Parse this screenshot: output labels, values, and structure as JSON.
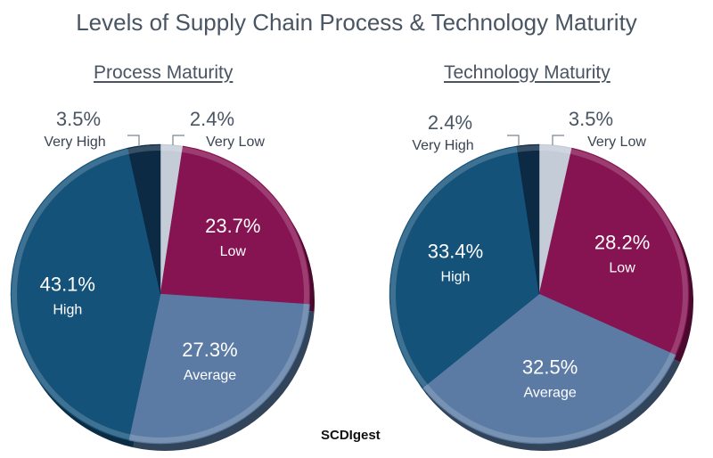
{
  "title": "Levels of Supply Chain Process & Technology Maturity",
  "source": "SCDIgest",
  "colors": {
    "very_low": "#c4ccd8",
    "low": "#861352",
    "average": "#5b7ba4",
    "high": "#14527a",
    "very_high": "#0d2a45"
  },
  "chart_data": [
    {
      "type": "pie",
      "title": "Process Maturity",
      "categories": [
        "Very Low",
        "Low",
        "Average",
        "High",
        "Very High"
      ],
      "values": [
        2.4,
        23.7,
        27.3,
        43.1,
        3.5
      ],
      "labels": [
        "2.4%",
        "23.7%",
        "27.3%",
        "43.1%",
        "3.5%"
      ]
    },
    {
      "type": "pie",
      "title": "Technology Maturity",
      "categories": [
        "Very Low",
        "Low",
        "Average",
        "High",
        "Very High"
      ],
      "values": [
        3.5,
        28.2,
        32.5,
        33.4,
        2.4
      ],
      "labels": [
        "3.5%",
        "28.2%",
        "32.5%",
        "33.4%",
        "2.4%"
      ]
    }
  ]
}
